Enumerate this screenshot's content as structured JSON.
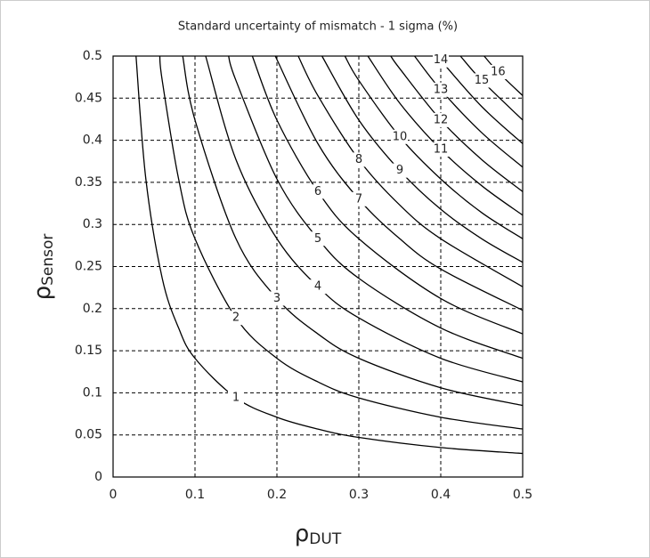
{
  "chart_data": {
    "type": "contour",
    "title": "Standard uncertainty of mismatch - 1 sigma (%)",
    "xlabel": {
      "symbol": "ρ",
      "sub": "DUT"
    },
    "ylabel": {
      "symbol": "ρ",
      "sub": "Sensor"
    },
    "xlim": [
      0,
      0.5
    ],
    "ylim": [
      0,
      0.5
    ],
    "xticks": [
      0,
      0.1,
      0.2,
      0.3,
      0.4,
      0.5
    ],
    "yticks": [
      0,
      0.05,
      0.1,
      0.15,
      0.2,
      0.25,
      0.3,
      0.35,
      0.4,
      0.45,
      0.5
    ],
    "grid": true,
    "color": "#000000",
    "series": [
      {
        "name": "1",
        "x": [
          0.028,
          0.04,
          0.06,
          0.08,
          0.1,
          0.15,
          0.2,
          0.25,
          0.3,
          0.4,
          0.5
        ],
        "values": [
          0.5,
          0.354,
          0.236,
          0.177,
          0.141,
          0.094,
          0.071,
          0.057,
          0.047,
          0.035,
          0.028
        ]
      },
      {
        "name": "2",
        "x": [
          0.057,
          0.06,
          0.08,
          0.1,
          0.15,
          0.2,
          0.25,
          0.3,
          0.4,
          0.5
        ],
        "values": [
          0.5,
          0.471,
          0.354,
          0.283,
          0.189,
          0.141,
          0.113,
          0.094,
          0.071,
          0.057
        ]
      },
      {
        "name": "3",
        "x": [
          0.085,
          0.1,
          0.15,
          0.2,
          0.25,
          0.3,
          0.4,
          0.5
        ],
        "values": [
          0.5,
          0.424,
          0.283,
          0.212,
          0.17,
          0.141,
          0.106,
          0.085
        ]
      },
      {
        "name": "4",
        "x": [
          0.113,
          0.15,
          0.2,
          0.25,
          0.3,
          0.4,
          0.5
        ],
        "values": [
          0.5,
          0.377,
          0.283,
          0.226,
          0.189,
          0.141,
          0.113
        ]
      },
      {
        "name": "5",
        "x": [
          0.141,
          0.15,
          0.2,
          0.25,
          0.3,
          0.4,
          0.5
        ],
        "values": [
          0.5,
          0.471,
          0.354,
          0.283,
          0.236,
          0.177,
          0.141
        ]
      },
      {
        "name": "6",
        "x": [
          0.17,
          0.2,
          0.25,
          0.3,
          0.4,
          0.5
        ],
        "values": [
          0.5,
          0.424,
          0.339,
          0.283,
          0.212,
          0.17
        ]
      },
      {
        "name": "7",
        "x": [
          0.198,
          0.25,
          0.3,
          0.35,
          0.4,
          0.5
        ],
        "values": [
          0.5,
          0.396,
          0.33,
          0.283,
          0.247,
          0.198
        ]
      },
      {
        "name": "8",
        "x": [
          0.226,
          0.25,
          0.3,
          0.35,
          0.4,
          0.5
        ],
        "values": [
          0.5,
          0.453,
          0.377,
          0.323,
          0.283,
          0.226
        ]
      },
      {
        "name": "9",
        "x": [
          0.255,
          0.3,
          0.35,
          0.4,
          0.45,
          0.5
        ],
        "values": [
          0.5,
          0.424,
          0.364,
          0.318,
          0.283,
          0.255
        ]
      },
      {
        "name": "10",
        "x": [
          0.283,
          0.3,
          0.35,
          0.4,
          0.45,
          0.5
        ],
        "values": [
          0.5,
          0.471,
          0.404,
          0.354,
          0.314,
          0.283
        ]
      },
      {
        "name": "11",
        "x": [
          0.311,
          0.35,
          0.4,
          0.45,
          0.5
        ],
        "values": [
          0.5,
          0.444,
          0.389,
          0.346,
          0.311
        ]
      },
      {
        "name": "12",
        "x": [
          0.339,
          0.35,
          0.4,
          0.45,
          0.5
        ],
        "values": [
          0.5,
          0.485,
          0.424,
          0.377,
          0.339
        ]
      },
      {
        "name": "13",
        "x": [
          0.368,
          0.4,
          0.45,
          0.5
        ],
        "values": [
          0.5,
          0.46,
          0.409,
          0.368
        ]
      },
      {
        "name": "14",
        "x": [
          0.396,
          0.4,
          0.45,
          0.5
        ],
        "values": [
          0.5,
          0.495,
          0.44,
          0.396
        ]
      },
      {
        "name": "15",
        "x": [
          0.424,
          0.45,
          0.5
        ],
        "values": [
          0.5,
          0.471,
          0.424
        ]
      },
      {
        "name": "16",
        "x": [
          0.453,
          0.47,
          0.5
        ],
        "values": [
          0.5,
          0.481,
          0.453
        ]
      }
    ]
  }
}
